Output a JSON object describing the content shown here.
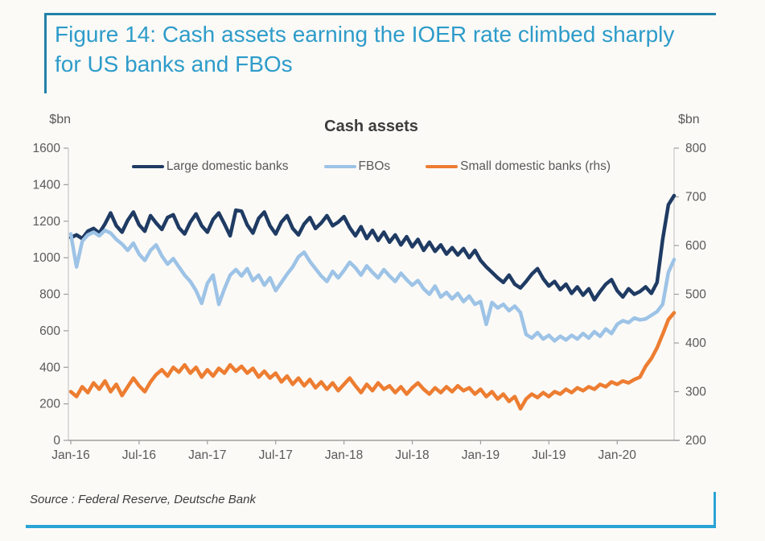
{
  "figure": {
    "title": "Figure 14: Cash assets earning the IOER rate climbed sharply for US banks and FBOs",
    "source": "Source : Federal Reserve, Deutsche Bank"
  },
  "colors": {
    "title_blue": "#2e9cca",
    "rule_top": "#2282a9",
    "rule_bottom": "#2aa4d5",
    "navy": "#1f3b63",
    "light_blue": "#9dc3e6",
    "orange": "#ed7d31",
    "axis_text": "#595959",
    "axis_line": "#c9c9c9",
    "tick_line": "#9e9e9e"
  },
  "chart_data": {
    "type": "line",
    "title": "Cash assets",
    "grid": false,
    "legend_position": "top-center",
    "left_axis": {
      "label": "$bn",
      "min": 0,
      "max": 1600,
      "step": 200
    },
    "right_axis": {
      "label": "$bn",
      "min": 200,
      "max": 800,
      "step": 100
    },
    "x_axis": {
      "tick_labels": [
        "Jan-16",
        "Jul-16",
        "Jan-17",
        "Jul-17",
        "Jan-18",
        "Jul-18",
        "Jan-19",
        "Jul-19",
        "Jan-20"
      ],
      "tick_months": [
        0,
        6,
        12,
        18,
        24,
        30,
        36,
        42,
        48
      ],
      "start_month": 0,
      "end_month": 53
    },
    "sampling": "values every 0.5 month starting Jan-2016, read from plot",
    "series": [
      {
        "name": "Large domestic banks",
        "axis": "left",
        "color_key": "navy",
        "values": [
          1110,
          1125,
          1105,
          1145,
          1160,
          1135,
          1185,
          1245,
          1175,
          1140,
          1205,
          1250,
          1180,
          1145,
          1230,
          1190,
          1155,
          1220,
          1235,
          1165,
          1130,
          1195,
          1240,
          1175,
          1140,
          1210,
          1245,
          1185,
          1120,
          1260,
          1255,
          1180,
          1135,
          1215,
          1250,
          1175,
          1130,
          1195,
          1230,
          1160,
          1125,
          1185,
          1220,
          1160,
          1190,
          1230,
          1175,
          1195,
          1225,
          1165,
          1120,
          1170,
          1105,
          1150,
          1095,
          1140,
          1085,
          1125,
          1070,
          1115,
          1060,
          1100,
          1040,
          1085,
          1035,
          1070,
          1020,
          1055,
          1015,
          1050,
          1000,
          1040,
          985,
          950,
          920,
          890,
          865,
          905,
          855,
          835,
          870,
          910,
          940,
          885,
          845,
          870,
          825,
          855,
          805,
          840,
          795,
          830,
          770,
          815,
          855,
          880,
          820,
          785,
          830,
          800,
          815,
          840,
          805,
          865,
          1100,
          1290,
          1340
        ]
      },
      {
        "name": "FBOs",
        "axis": "left",
        "color_key": "light_blue",
        "values": [
          1130,
          950,
          1090,
          1125,
          1140,
          1120,
          1150,
          1135,
          1100,
          1075,
          1040,
          1080,
          1020,
          985,
          1040,
          1070,
          1010,
          965,
          995,
          950,
          905,
          870,
          820,
          750,
          860,
          905,
          745,
          830,
          905,
          935,
          900,
          940,
          875,
          905,
          850,
          890,
          820,
          865,
          910,
          950,
          1005,
          1030,
          980,
          940,
          900,
          870,
          925,
          890,
          930,
          975,
          945,
          905,
          955,
          920,
          890,
          935,
          900,
          870,
          915,
          880,
          850,
          875,
          830,
          800,
          845,
          785,
          810,
          775,
          805,
          760,
          790,
          745,
          760,
          635,
          755,
          725,
          745,
          710,
          735,
          700,
          580,
          560,
          590,
          555,
          575,
          545,
          570,
          550,
          575,
          555,
          585,
          560,
          595,
          570,
          610,
          585,
          635,
          655,
          645,
          670,
          660,
          665,
          685,
          705,
          745,
          920,
          990
        ]
      },
      {
        "name": "Small domestic banks (rhs)",
        "axis": "right",
        "color_key": "orange",
        "values": [
          300,
          290,
          310,
          298,
          318,
          305,
          322,
          300,
          315,
          292,
          310,
          328,
          312,
          300,
          320,
          335,
          345,
          332,
          350,
          340,
          355,
          338,
          350,
          330,
          345,
          332,
          348,
          338,
          355,
          342,
          352,
          338,
          348,
          330,
          342,
          328,
          338,
          320,
          332,
          315,
          328,
          312,
          325,
          308,
          320,
          305,
          318,
          302,
          315,
          328,
          312,
          298,
          315,
          302,
          318,
          305,
          312,
          298,
          310,
          295,
          308,
          318,
          305,
          295,
          308,
          298,
          310,
          300,
          312,
          302,
          308,
          295,
          305,
          290,
          300,
          285,
          295,
          280,
          290,
          265,
          285,
          295,
          288,
          298,
          290,
          300,
          295,
          305,
          298,
          308,
          302,
          310,
          305,
          315,
          310,
          320,
          315,
          322,
          318,
          325,
          330,
          352,
          368,
          390,
          418,
          448,
          462
        ]
      }
    ]
  }
}
